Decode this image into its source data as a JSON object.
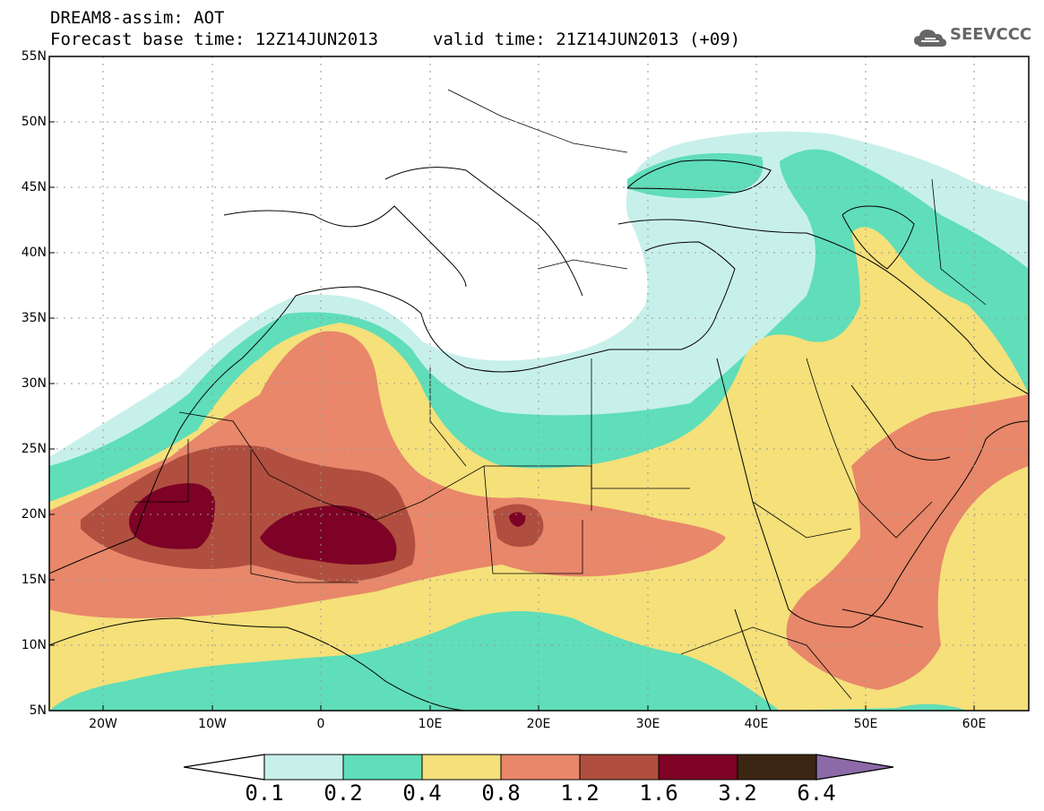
{
  "header": {
    "title_line1": "DREAM8-assim: AOT",
    "title_line2": "Forecast base time: 12Z14JUN2013",
    "valid_time": "valid time: 21Z14JUN2013 (+09)",
    "logo_text": "SEEVCCC",
    "logo_icon": "cloud-icon"
  },
  "map": {
    "lat_labels": [
      "55N",
      "50N",
      "45N",
      "40N",
      "35N",
      "30N",
      "25N",
      "20N",
      "15N",
      "10N",
      "5N"
    ],
    "lon_labels": [
      "20W",
      "10W",
      "0",
      "10E",
      "20E",
      "30E",
      "40E",
      "50E",
      "60E"
    ],
    "lon_range": [
      -25,
      65
    ],
    "lat_range": [
      5,
      55
    ],
    "grid": "dotted"
  },
  "colorbar": {
    "levels": [
      "0.1",
      "0.2",
      "0.4",
      "0.8",
      "1.2",
      "1.6",
      "3.2",
      "6.4"
    ],
    "colors": [
      "#c8f0eb",
      "#5fdeb9",
      "#f5e07a",
      "#e8876a",
      "#b04f3f",
      "#7d0225",
      "#3b2613",
      "#8c6aa7"
    ]
  }
}
